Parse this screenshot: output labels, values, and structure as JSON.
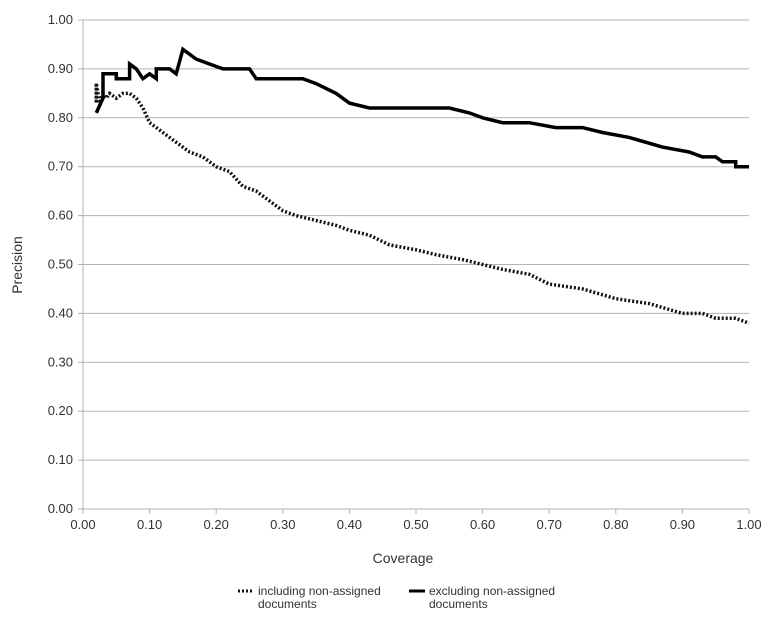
{
  "chart_data": {
    "type": "line",
    "title": "",
    "xlabel": "Coverage",
    "ylabel": "Precision",
    "xlim": [
      0,
      1
    ],
    "ylim": [
      0,
      1
    ],
    "x_ticks": [
      "0.00",
      "0.10",
      "0.20",
      "0.30",
      "0.40",
      "0.50",
      "0.60",
      "0.70",
      "0.80",
      "0.90",
      "1.00"
    ],
    "y_ticks": [
      "0.00",
      "0.10",
      "0.20",
      "0.30",
      "0.40",
      "0.50",
      "0.60",
      "0.70",
      "0.80",
      "0.90",
      "1.00"
    ],
    "grid": "horizontal",
    "legend_position": "bottom",
    "series": [
      {
        "name": "including non-assigned documents",
        "legend_lines": [
          "including non-assigned",
          "documents"
        ],
        "style": "dotted",
        "color": "#111111",
        "points": [
          [
            0.02,
            0.87
          ],
          [
            0.02,
            0.83
          ],
          [
            0.02,
            0.87
          ],
          [
            0.025,
            0.83
          ],
          [
            0.03,
            0.85
          ],
          [
            0.035,
            0.84
          ],
          [
            0.04,
            0.85
          ],
          [
            0.05,
            0.84
          ],
          [
            0.06,
            0.85
          ],
          [
            0.07,
            0.85
          ],
          [
            0.08,
            0.84
          ],
          [
            0.09,
            0.82
          ],
          [
            0.1,
            0.79
          ],
          [
            0.12,
            0.77
          ],
          [
            0.14,
            0.75
          ],
          [
            0.16,
            0.73
          ],
          [
            0.18,
            0.72
          ],
          [
            0.2,
            0.7
          ],
          [
            0.22,
            0.69
          ],
          [
            0.24,
            0.66
          ],
          [
            0.26,
            0.65
          ],
          [
            0.28,
            0.63
          ],
          [
            0.3,
            0.61
          ],
          [
            0.32,
            0.6
          ],
          [
            0.35,
            0.59
          ],
          [
            0.38,
            0.58
          ],
          [
            0.4,
            0.57
          ],
          [
            0.43,
            0.56
          ],
          [
            0.46,
            0.54
          ],
          [
            0.5,
            0.53
          ],
          [
            0.53,
            0.52
          ],
          [
            0.57,
            0.51
          ],
          [
            0.6,
            0.5
          ],
          [
            0.63,
            0.49
          ],
          [
            0.67,
            0.48
          ],
          [
            0.7,
            0.46
          ],
          [
            0.75,
            0.45
          ],
          [
            0.8,
            0.43
          ],
          [
            0.85,
            0.42
          ],
          [
            0.9,
            0.4
          ],
          [
            0.93,
            0.4
          ],
          [
            0.95,
            0.39
          ],
          [
            0.98,
            0.39
          ],
          [
            1.0,
            0.38
          ]
        ]
      },
      {
        "name": "excluding non-assigned documents",
        "legend_lines": [
          "excluding non-assigned",
          "documents"
        ],
        "style": "solid",
        "color": "#000000",
        "points": [
          [
            0.02,
            0.81
          ],
          [
            0.03,
            0.84
          ],
          [
            0.03,
            0.89
          ],
          [
            0.05,
            0.89
          ],
          [
            0.05,
            0.88
          ],
          [
            0.07,
            0.88
          ],
          [
            0.07,
            0.91
          ],
          [
            0.08,
            0.9
          ],
          [
            0.09,
            0.88
          ],
          [
            0.1,
            0.89
          ],
          [
            0.11,
            0.88
          ],
          [
            0.11,
            0.9
          ],
          [
            0.13,
            0.9
          ],
          [
            0.14,
            0.89
          ],
          [
            0.15,
            0.94
          ],
          [
            0.17,
            0.92
          ],
          [
            0.19,
            0.91
          ],
          [
            0.21,
            0.9
          ],
          [
            0.25,
            0.9
          ],
          [
            0.26,
            0.88
          ],
          [
            0.3,
            0.88
          ],
          [
            0.33,
            0.88
          ],
          [
            0.35,
            0.87
          ],
          [
            0.38,
            0.85
          ],
          [
            0.4,
            0.83
          ],
          [
            0.43,
            0.82
          ],
          [
            0.48,
            0.82
          ],
          [
            0.53,
            0.82
          ],
          [
            0.55,
            0.82
          ],
          [
            0.58,
            0.81
          ],
          [
            0.6,
            0.8
          ],
          [
            0.63,
            0.79
          ],
          [
            0.67,
            0.79
          ],
          [
            0.71,
            0.78
          ],
          [
            0.75,
            0.78
          ],
          [
            0.78,
            0.77
          ],
          [
            0.82,
            0.76
          ],
          [
            0.87,
            0.74
          ],
          [
            0.91,
            0.73
          ],
          [
            0.93,
            0.72
          ],
          [
            0.95,
            0.72
          ],
          [
            0.96,
            0.71
          ],
          [
            0.98,
            0.71
          ],
          [
            0.98,
            0.7
          ],
          [
            1.0,
            0.7
          ]
        ]
      }
    ]
  }
}
